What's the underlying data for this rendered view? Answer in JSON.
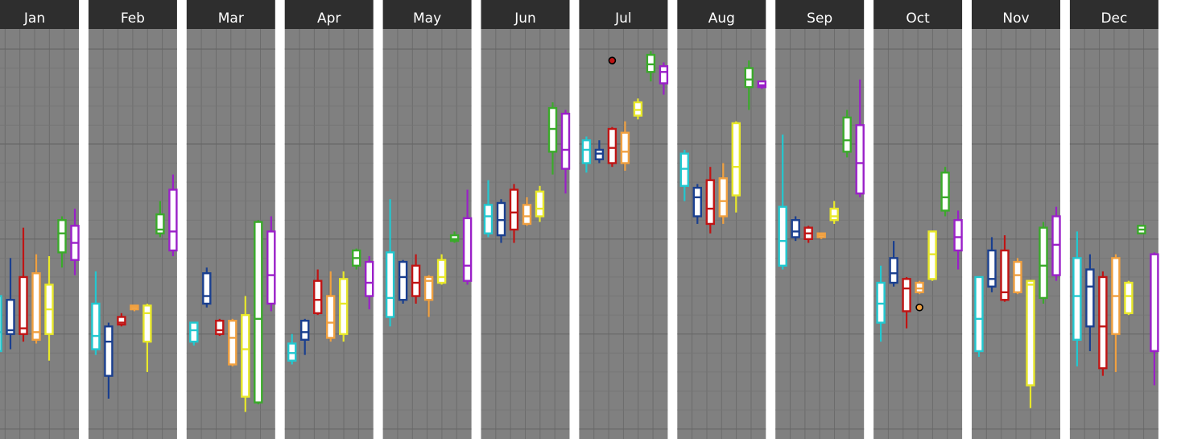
{
  "chart_data": {
    "type": "box",
    "title": "",
    "xlabel": "",
    "ylabel": "",
    "ylim": [
      0,
      100
    ],
    "grid": true,
    "legend": "none",
    "colors": {
      "panel_background": "#808080",
      "header_background": "#2e2e2e",
      "header_text": "#ffffff",
      "gridline": "#6c6c6c",
      "box_fill": "#ffffff"
    },
    "series_colors": [
      "#22c8d0",
      "#1a3f8f",
      "#c01414",
      "#f0a040",
      "#e8e82a",
      "#3aaa2a",
      "#9a20c8"
    ],
    "panels": [
      {
        "label": "Jan",
        "boxes": [
          {
            "low": 18.5,
            "q1": 20.5,
            "median": 25.5,
            "q3": 35,
            "high": 43.5,
            "outliers": []
          },
          {
            "low": 21,
            "q1": 25,
            "median": 26,
            "q3": 34,
            "high": 45,
            "outliers": []
          },
          {
            "low": 23,
            "q1": 25,
            "median": 26.5,
            "q3": 40,
            "high": 53,
            "outliers": []
          },
          {
            "low": 22.5,
            "q1": 23.5,
            "median": 25.5,
            "q3": 41,
            "high": 46,
            "outliers": []
          },
          {
            "low": 18,
            "q1": 25,
            "median": 31.5,
            "q3": 38,
            "high": 45.5,
            "outliers": []
          },
          {
            "low": 42.5,
            "q1": 46.5,
            "median": 51.5,
            "q3": 55,
            "high": 56,
            "outliers": []
          },
          {
            "low": 40.5,
            "q1": 44.5,
            "median": 49,
            "q3": 53.5,
            "high": 58,
            "outliers": []
          }
        ]
      },
      {
        "label": "Feb",
        "boxes": [
          {
            "low": 19.5,
            "q1": 21,
            "median": 24.5,
            "q3": 33,
            "high": 41.5,
            "outliers": []
          },
          {
            "low": 8,
            "q1": 14,
            "median": 23,
            "q3": 27,
            "high": 28,
            "outliers": []
          },
          {
            "low": 27,
            "q1": 27.5,
            "median": 28,
            "q3": 29.5,
            "high": 30.5,
            "outliers": []
          },
          {
            "low": 31,
            "q1": 31.5,
            "median": 32,
            "q3": 32.5,
            "high": 32.5,
            "outliers": []
          },
          {
            "low": 15,
            "q1": 23,
            "median": 30.5,
            "q3": 32.5,
            "high": 33,
            "outliers": []
          },
          {
            "low": 50.5,
            "q1": 51.5,
            "median": 52.5,
            "q3": 56.5,
            "high": 60,
            "outliers": []
          },
          {
            "low": 45.5,
            "q1": 47,
            "median": 52,
            "q3": 63,
            "high": 67,
            "outliers": []
          }
        ]
      },
      {
        "label": "Mar",
        "boxes": [
          {
            "low": 22,
            "q1": 23,
            "median": 26,
            "q3": 28,
            "high": 28,
            "outliers": []
          },
          {
            "low": 32,
            "q1": 33,
            "median": 35,
            "q3": 41,
            "high": 42.5,
            "outliers": []
          },
          {
            "low": 24.5,
            "q1": 25,
            "median": 26,
            "q3": 28.5,
            "high": 29,
            "outliers": []
          },
          {
            "low": 16.5,
            "q1": 17,
            "median": 24,
            "q3": 28.5,
            "high": 29,
            "outliers": []
          },
          {
            "low": 4.5,
            "q1": 8.5,
            "median": 21,
            "q3": 30,
            "high": 35,
            "outliers": []
          },
          {
            "low": 6.5,
            "q1": 7,
            "median": 29,
            "q3": 54.5,
            "high": 55,
            "outliers": []
          },
          {
            "low": 31,
            "q1": 33,
            "median": 40.5,
            "q3": 52,
            "high": 56,
            "outliers": []
          }
        ]
      },
      {
        "label": "Apr",
        "boxes": [
          {
            "low": 17,
            "q1": 18,
            "median": 20,
            "q3": 22.5,
            "high": 25,
            "outliers": []
          },
          {
            "low": 19.5,
            "q1": 23.5,
            "median": 25.5,
            "q3": 28.5,
            "high": 29,
            "outliers": []
          },
          {
            "low": 30,
            "q1": 30.5,
            "median": 34,
            "q3": 39,
            "high": 42,
            "outliers": []
          },
          {
            "low": 23,
            "q1": 24,
            "median": 28,
            "q3": 35,
            "high": 41.5,
            "outliers": []
          },
          {
            "low": 23,
            "q1": 25,
            "median": 33,
            "q3": 39.5,
            "high": 41.5,
            "outliers": []
          },
          {
            "low": 42,
            "q1": 43,
            "median": 45,
            "q3": 47,
            "high": 47.5,
            "outliers": []
          },
          {
            "low": 31.5,
            "q1": 35,
            "median": 38.5,
            "q3": 44,
            "high": 45.5,
            "outliers": []
          }
        ]
      },
      {
        "label": "May",
        "boxes": [
          {
            "low": 27,
            "q1": 29.5,
            "median": 34.5,
            "q3": 46.5,
            "high": 60.5,
            "outliers": []
          },
          {
            "low": 33,
            "q1": 34,
            "median": 40,
            "q3": 44,
            "high": 44.5,
            "outliers": []
          },
          {
            "low": 33,
            "q1": 35,
            "median": 38.5,
            "q3": 43,
            "high": 46,
            "outliers": []
          },
          {
            "low": 29.5,
            "q1": 34,
            "median": 39,
            "q3": 40,
            "high": 40.5,
            "outliers": []
          },
          {
            "low": 38,
            "q1": 38.5,
            "median": 40,
            "q3": 44.5,
            "high": 46,
            "outliers": []
          },
          {
            "low": 49,
            "q1": 49.5,
            "median": 50,
            "q3": 51,
            "high": 52,
            "outliers": []
          },
          {
            "low": 38,
            "q1": 39,
            "median": 43,
            "q3": 55.5,
            "high": 63,
            "outliers": []
          }
        ]
      },
      {
        "label": "Jun",
        "boxes": [
          {
            "low": 50.5,
            "q1": 51.5,
            "median": 56,
            "q3": 59,
            "high": 65.5,
            "outliers": []
          },
          {
            "low": 49,
            "q1": 51,
            "median": 55,
            "q3": 59.5,
            "high": 60.5,
            "outliers": []
          },
          {
            "low": 49,
            "q1": 52.5,
            "median": 57,
            "q3": 63,
            "high": 64.5,
            "outliers": []
          },
          {
            "low": 53.5,
            "q1": 54,
            "median": 56,
            "q3": 59,
            "high": 61,
            "outliers": []
          },
          {
            "low": 54.5,
            "q1": 56,
            "median": 58,
            "q3": 62.5,
            "high": 64,
            "outliers": []
          },
          {
            "low": 67,
            "q1": 73,
            "median": 79,
            "q3": 84.5,
            "high": 86,
            "outliers": []
          },
          {
            "low": 62,
            "q1": 68.5,
            "median": 73.5,
            "q3": 83,
            "high": 84,
            "outliers": []
          }
        ]
      },
      {
        "label": "Jul",
        "boxes": [
          {
            "low": 67.5,
            "q1": 70,
            "median": 73.5,
            "q3": 76,
            "high": 77,
            "outliers": []
          },
          {
            "low": 70,
            "q1": 71,
            "median": 72.5,
            "q3": 73.5,
            "high": 76,
            "outliers": []
          },
          {
            "low": 69,
            "q1": 70,
            "median": 74,
            "q3": 79,
            "high": 79.5,
            "outliers": []
          },
          {
            "low": 68,
            "q1": 70,
            "median": 73,
            "q3": 78,
            "high": 81,
            "outliers": []
          },
          {
            "low": 81.5,
            "q1": 82.5,
            "median": 84,
            "q3": 86,
            "high": 87,
            "outliers": []
          },
          {
            "low": 91.5,
            "q1": 94,
            "median": 96,
            "q3": 98.5,
            "high": 99.5,
            "outliers": []
          },
          {
            "low": 88,
            "q1": 91,
            "median": 94,
            "q3": 95.5,
            "high": 96.5,
            "outliers": []
          }
        ],
        "extra_outliers": [
          {
            "series": 2,
            "value": 97
          }
        ]
      },
      {
        "label": "Aug",
        "boxes": [
          {
            "low": 60,
            "q1": 64,
            "median": 68.5,
            "q3": 72.5,
            "high": 73.5,
            "outliers": []
          },
          {
            "low": 54,
            "q1": 56,
            "median": 61,
            "q3": 63.5,
            "high": 64.5,
            "outliers": []
          },
          {
            "low": 51.5,
            "q1": 54,
            "median": 58,
            "q3": 65.5,
            "high": 69,
            "outliers": []
          },
          {
            "low": 54,
            "q1": 56,
            "median": 60,
            "q3": 66,
            "high": 70,
            "outliers": []
          },
          {
            "low": 57,
            "q1": 61.5,
            "median": 69,
            "q3": 80.5,
            "high": 81,
            "outliers": []
          },
          {
            "low": 84,
            "q1": 90,
            "median": 92,
            "q3": 95,
            "high": 97,
            "outliers": []
          },
          {
            "low": 89.5,
            "q1": 90,
            "median": 90.5,
            "q3": 91.5,
            "high": 91.5,
            "outliers": []
          }
        ]
      },
      {
        "label": "Sep",
        "boxes": [
          {
            "low": 42,
            "q1": 43,
            "median": 49.5,
            "q3": 58.5,
            "high": 77.5,
            "outliers": []
          },
          {
            "low": 49.5,
            "q1": 50.5,
            "median": 52,
            "q3": 55,
            "high": 56,
            "outliers": []
          },
          {
            "low": 49,
            "q1": 50,
            "median": 51.5,
            "q3": 53,
            "high": 53.5,
            "outliers": []
          },
          {
            "low": 50,
            "q1": 50.5,
            "median": 51,
            "q3": 51.5,
            "high": 51.5,
            "outliers": []
          },
          {
            "low": 54,
            "q1": 55,
            "median": 56,
            "q3": 58,
            "high": 60,
            "outliers": []
          },
          {
            "low": 71.5,
            "q1": 73,
            "median": 76,
            "q3": 82,
            "high": 84,
            "outliers": []
          },
          {
            "low": 61,
            "q1": 62,
            "median": 70,
            "q3": 80,
            "high": 92,
            "outliers": []
          }
        ]
      },
      {
        "label": "Oct",
        "boxes": [
          {
            "low": 23,
            "q1": 28,
            "median": 33,
            "q3": 38.5,
            "high": 43,
            "outliers": []
          },
          {
            "low": 37.5,
            "q1": 38.5,
            "median": 41,
            "q3": 45,
            "high": 49.5,
            "outliers": []
          },
          {
            "low": 26.5,
            "q1": 31,
            "median": 37,
            "q3": 39.5,
            "high": 40,
            "outliers": []
          },
          {
            "low": 35.5,
            "q1": 36,
            "median": 37,
            "q3": 38.5,
            "high": 39,
            "outliers": []
          },
          {
            "low": 39,
            "q1": 39.5,
            "median": 46,
            "q3": 52,
            "high": 52,
            "outliers": []
          },
          {
            "low": 56,
            "q1": 57.5,
            "median": 61,
            "q3": 67.5,
            "high": 69,
            "outliers": []
          },
          {
            "low": 42,
            "q1": 47,
            "median": 50.5,
            "q3": 55,
            "high": 57.5,
            "outliers": []
          }
        ],
        "extra_outliers": [
          {
            "series": 3,
            "value": 32
          }
        ]
      },
      {
        "label": "Nov",
        "boxes": [
          {
            "low": 19,
            "q1": 20.5,
            "median": 29,
            "q3": 40,
            "high": 40,
            "outliers": []
          },
          {
            "low": 36,
            "q1": 37.5,
            "median": 39.5,
            "q3": 47,
            "high": 50.5,
            "outliers": []
          },
          {
            "low": 33.5,
            "q1": 34,
            "median": 36,
            "q3": 47,
            "high": 51,
            "outliers": []
          },
          {
            "low": 35.5,
            "q1": 36,
            "median": 40.5,
            "q3": 44,
            "high": 45,
            "outliers": []
          },
          {
            "low": 5.5,
            "q1": 11.5,
            "median": 38,
            "q3": 39,
            "high": 39,
            "outliers": []
          },
          {
            "low": 33,
            "q1": 34.5,
            "median": 43,
            "q3": 53,
            "high": 54.5,
            "outliers": []
          },
          {
            "low": 39,
            "q1": 40.5,
            "median": 48.5,
            "q3": 56,
            "high": 58.5,
            "outliers": []
          }
        ]
      },
      {
        "label": "Dec",
        "boxes": [
          {
            "low": 16.5,
            "q1": 23.5,
            "median": 35,
            "q3": 45,
            "high": 52,
            "outliers": []
          },
          {
            "low": 20.5,
            "q1": 27,
            "median": 37.5,
            "q3": 42,
            "high": 46,
            "outliers": []
          },
          {
            "low": 14,
            "q1": 16,
            "median": 27,
            "q3": 40,
            "high": 41.5,
            "outliers": []
          },
          {
            "low": 15,
            "q1": 25,
            "median": 35,
            "q3": 45,
            "high": 46,
            "outliers": []
          },
          {
            "low": 30,
            "q1": 30.5,
            "median": 35,
            "q3": 38.5,
            "high": 39,
            "outliers": []
          },
          {
            "low": 51.5,
            "q1": 51.5,
            "median": 52.5,
            "q3": 53.5,
            "high": 53.5,
            "outliers": []
          },
          {
            "low": 11.5,
            "q1": 20.5,
            "median": 20.5,
            "q3": 46,
            "high": 46.5,
            "outliers": []
          }
        ]
      }
    ]
  }
}
